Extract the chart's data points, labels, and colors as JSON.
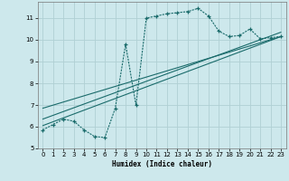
{
  "xlabel": "Humidex (Indice chaleur)",
  "bg_color": "#cde8ec",
  "grid_color": "#b0d0d4",
  "line_color": "#1a6b6b",
  "xlim": [
    -0.5,
    23.5
  ],
  "ylim": [
    5.0,
    11.75
  ],
  "yticks": [
    5,
    6,
    7,
    8,
    9,
    10,
    11
  ],
  "xticks": [
    0,
    1,
    2,
    3,
    4,
    5,
    6,
    7,
    8,
    9,
    10,
    11,
    12,
    13,
    14,
    15,
    16,
    17,
    18,
    19,
    20,
    21,
    22,
    23
  ],
  "main_x": [
    0,
    1,
    2,
    3,
    4,
    5,
    6,
    7,
    8,
    9,
    10,
    11,
    12,
    13,
    14,
    15,
    16,
    17,
    18,
    19,
    20,
    21,
    22,
    23
  ],
  "main_y": [
    5.85,
    6.1,
    6.35,
    6.25,
    5.85,
    5.55,
    5.5,
    6.85,
    9.8,
    7.0,
    11.0,
    11.1,
    11.2,
    11.25,
    11.3,
    11.45,
    11.1,
    10.4,
    10.15,
    10.2,
    10.5,
    10.05,
    10.1,
    10.15
  ],
  "line1_x": [
    0,
    23
  ],
  "line1_y": [
    6.05,
    10.15
  ],
  "line2_x": [
    0,
    23
  ],
  "line2_y": [
    6.35,
    10.35
  ],
  "line3_x": [
    0,
    23
  ],
  "line3_y": [
    6.85,
    10.15
  ]
}
